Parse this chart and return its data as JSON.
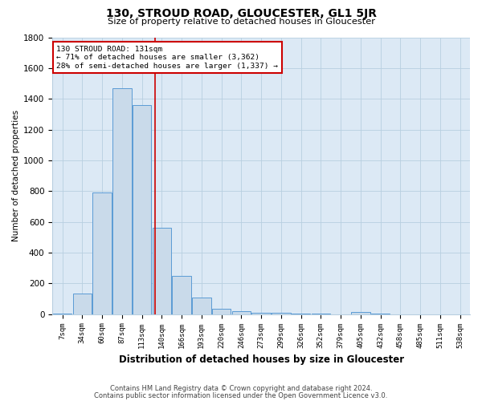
{
  "title": "130, STROUD ROAD, GLOUCESTER, GL1 5JR",
  "subtitle": "Size of property relative to detached houses in Gloucester",
  "xlabel": "Distribution of detached houses by size in Gloucester",
  "ylabel": "Number of detached properties",
  "categories": [
    "7sqm",
    "34sqm",
    "60sqm",
    "87sqm",
    "113sqm",
    "140sqm",
    "166sqm",
    "193sqm",
    "220sqm",
    "246sqm",
    "273sqm",
    "299sqm",
    "326sqm",
    "352sqm",
    "379sqm",
    "405sqm",
    "432sqm",
    "458sqm",
    "485sqm",
    "511sqm",
    "538sqm"
  ],
  "values": [
    5,
    135,
    790,
    1470,
    1360,
    560,
    250,
    110,
    35,
    20,
    10,
    8,
    5,
    3,
    0,
    15,
    3,
    0,
    0,
    0,
    0
  ],
  "bar_color": "#c9daea",
  "bar_edge_color": "#5b9bd5",
  "grid_color": "#b8cfe0",
  "annotation_box_color": "#cc0000",
  "annotation_line1": "130 STROUD ROAD: 131sqm",
  "annotation_line2": "← 71% of detached houses are smaller (3,362)",
  "annotation_line3": "28% of semi-detached houses are larger (1,337) →",
  "vline_x_index": 4.67,
  "vline_color": "#cc0000",
  "ylim": [
    0,
    1800
  ],
  "yticks": [
    0,
    200,
    400,
    600,
    800,
    1000,
    1200,
    1400,
    1600,
    1800
  ],
  "footnote1": "Contains HM Land Registry data © Crown copyright and database right 2024.",
  "footnote2": "Contains public sector information licensed under the Open Government Licence v3.0.",
  "bg_color": "#ffffff",
  "plot_bg_color": "#dce9f5"
}
